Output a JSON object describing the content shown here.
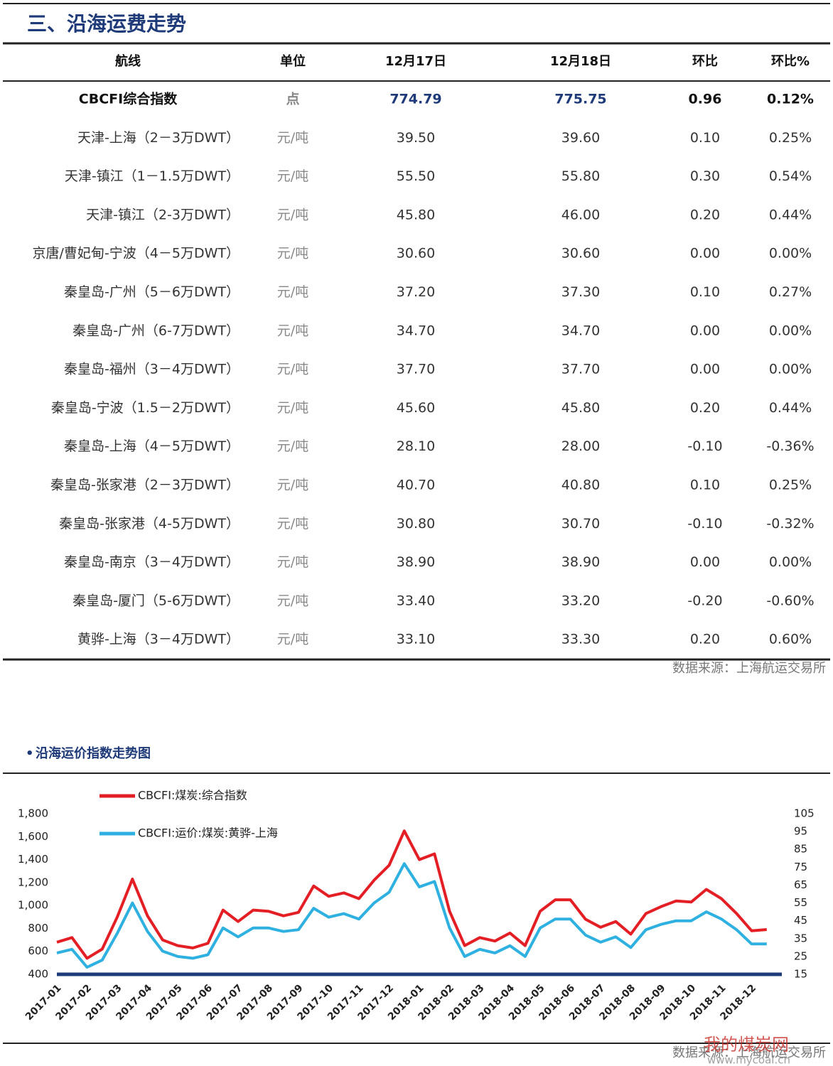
{
  "header": {
    "title": "三、沿海运费走势"
  },
  "table": {
    "columns": [
      "航线",
      "单位",
      "12月17日",
      "12月18日",
      "环比",
      "环比%"
    ],
    "rows": [
      [
        "CBCFI综合指数",
        "点",
        "774.79",
        "775.75",
        "0.96",
        "0.12%"
      ],
      [
        "天津-上海（2－3万DWT）",
        "元/吨",
        "39.50",
        "39.60",
        "0.10",
        "0.25%"
      ],
      [
        "天津-镇江（1－1.5万DWT）",
        "元/吨",
        "55.50",
        "55.80",
        "0.30",
        "0.54%"
      ],
      [
        "天津-镇江（2-3万DWT）",
        "元/吨",
        "45.80",
        "46.00",
        "0.20",
        "0.44%"
      ],
      [
        "京唐/曹妃甸-宁波（4－5万DWT）",
        "元/吨",
        "30.60",
        "30.60",
        "0.00",
        "0.00%"
      ],
      [
        "秦皇岛-广州（5－6万DWT）",
        "元/吨",
        "37.20",
        "37.30",
        "0.10",
        "0.27%"
      ],
      [
        "秦皇岛-广州（6-7万DWT）",
        "元/吨",
        "34.70",
        "34.70",
        "0.00",
        "0.00%"
      ],
      [
        "秦皇岛-福州（3－4万DWT）",
        "元/吨",
        "37.70",
        "37.70",
        "0.00",
        "0.00%"
      ],
      [
        "秦皇岛-宁波（1.5－2万DWT）",
        "元/吨",
        "45.60",
        "45.80",
        "0.20",
        "0.44%"
      ],
      [
        "秦皇岛-上海（4－5万DWT）",
        "元/吨",
        "28.10",
        "28.00",
        "-0.10",
        "-0.36%"
      ],
      [
        "秦皇岛-张家港（2－3万DWT）",
        "元/吨",
        "40.70",
        "40.80",
        "0.10",
        "0.25%"
      ],
      [
        "秦皇岛-张家港（4-5万DWT）",
        "元/吨",
        "30.80",
        "30.70",
        "-0.10",
        "-0.32%"
      ],
      [
        "秦皇岛-南京（3－4万DWT）",
        "元/吨",
        "38.90",
        "38.90",
        "0.00",
        "0.00%"
      ],
      [
        "秦皇岛-厦门（5-6万DWT）",
        "元/吨",
        "33.40",
        "33.20",
        "-0.20",
        "-0.60%"
      ],
      [
        "黄骅-上海（3－4万DWT）",
        "元/吨",
        "33.10",
        "33.30",
        "0.20",
        "0.60%"
      ]
    ]
  },
  "table_source": "数据来源：上海航运交易所",
  "chart_title": "沿海运价指数走势图",
  "chart_data": {
    "type": "line",
    "categories": [
      "2017-01",
      null,
      "2017-02",
      null,
      "2017-03",
      null,
      "2017-04",
      null,
      "2017-05",
      null,
      "2017-06",
      null,
      "2017-07",
      null,
      "2017-08",
      null,
      "2017-09",
      null,
      "2017-10",
      null,
      "2017-11",
      null,
      "2017-12",
      null,
      "2018-01",
      null,
      "2018-02",
      null,
      "2018-03",
      null,
      "2018-04",
      null,
      "2018-05",
      null,
      "2018-06",
      null,
      "2018-07",
      null,
      "2018-08",
      null,
      "2018-09",
      null,
      "2018-10",
      null,
      "2018-11",
      null,
      "2018-12",
      null
    ],
    "series": [
      {
        "name": "CBCFI:煤炭:综合指数",
        "color": "#e31e24",
        "values": [
          680,
          720,
          540,
          620,
          900,
          1230,
          910,
          700,
          650,
          630,
          670,
          960,
          860,
          960,
          950,
          910,
          940,
          1170,
          1080,
          1110,
          1060,
          1220,
          1350,
          1650,
          1400,
          1450,
          950,
          650,
          720,
          690,
          760,
          650,
          950,
          1050,
          1050,
          880,
          810,
          860,
          750,
          930,
          990,
          1040,
          1030,
          1140,
          1060,
          930,
          780,
          790
        ]
      },
      {
        "name": "CBCFI:运价:煤炭:黄骅-上海",
        "color": "#2eb0e0",
        "axis": "y2",
        "values": [
          27,
          29,
          19,
          23,
          38,
          55,
          39,
          28,
          25,
          24,
          26,
          41,
          36,
          41,
          41,
          39,
          40,
          52,
          47,
          49,
          46,
          55,
          61,
          77,
          64,
          67,
          41,
          25,
          29,
          27,
          31,
          25,
          41,
          46,
          46,
          37,
          33,
          36,
          30,
          40,
          43,
          45,
          45,
          50,
          46,
          40,
          32,
          32
        ]
      }
    ],
    "ylim": [
      400,
      1800
    ],
    "yticks": [
      400,
      600,
      800,
      {
        "value": 1000,
        "label": "1,000"
      },
      {
        "value": 1200,
        "label": "1,200"
      },
      {
        "value": 1400,
        "label": "1,400"
      },
      {
        "value": 1600,
        "label": "1,600"
      },
      {
        "value": 1800,
        "label": "1,800"
      }
    ],
    "y2lim": [
      15,
      105
    ],
    "y2ticks": [
      15,
      25,
      35,
      45,
      55,
      65,
      75,
      85,
      95,
      105
    ]
  },
  "chart_source": "数据来源：上海航运交易所",
  "watermark": {
    "name": "我的煤炭网",
    "url": "www.mycoal.cn"
  }
}
